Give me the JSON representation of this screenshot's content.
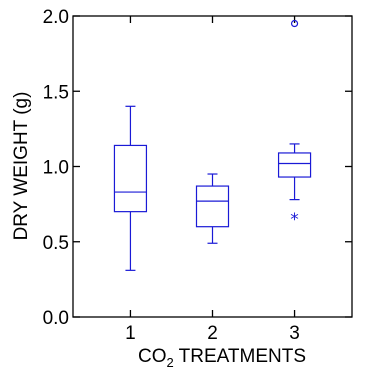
{
  "chart_data": {
    "type": "box",
    "xlabel": {
      "prefix": "CO",
      "sub": "2",
      "suffix": " TREATMENTS"
    },
    "ylabel": "DRY WEIGHT (g)",
    "ylim": [
      0.0,
      2.0
    ],
    "yticks": [
      0.0,
      0.5,
      1.0,
      1.5,
      2.0
    ],
    "ytick_labels": [
      "0.0",
      "0.5",
      "1.0",
      "1.5",
      "2.0"
    ],
    "xlim": [
      0.3,
      3.7
    ],
    "categories": [
      "1",
      "2",
      "3"
    ],
    "box_color": "#1a1ad6",
    "boxes": [
      {
        "x": 1,
        "whisker_low": 0.31,
        "q1": 0.7,
        "median": 0.83,
        "q3": 1.14,
        "whisker_high": 1.4,
        "outliers": []
      },
      {
        "x": 2,
        "whisker_low": 0.49,
        "q1": 0.6,
        "median": 0.77,
        "q3": 0.87,
        "whisker_high": 0.95,
        "outliers": []
      },
      {
        "x": 3,
        "whisker_low": 0.78,
        "q1": 0.93,
        "median": 1.02,
        "q3": 1.09,
        "whisker_high": 1.15,
        "outliers": [
          {
            "value": 0.67,
            "marker": "star"
          },
          {
            "value": 1.95,
            "marker": "circle"
          }
        ]
      }
    ]
  }
}
